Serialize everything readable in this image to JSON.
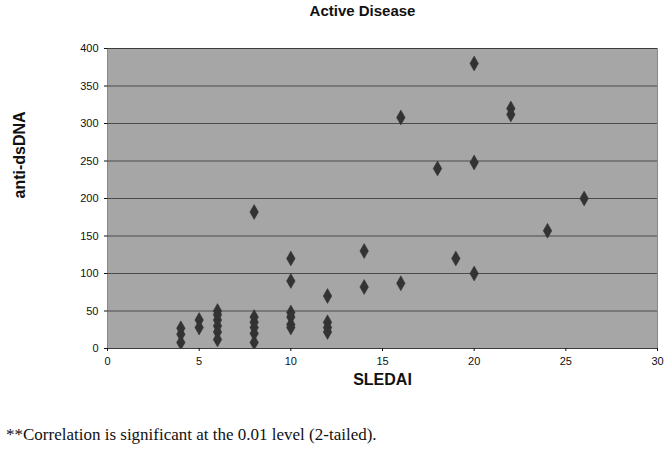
{
  "chart_data": {
    "type": "scatter",
    "title": "Active Disease",
    "x_label": "SLEDAI",
    "y_label": "anti-dsDNA",
    "caption": "**Correlation is significant at the 0.01 level (2-tailed).",
    "x": [
      4,
      4,
      4,
      5,
      5,
      6,
      6,
      6,
      6,
      6,
      6,
      8,
      8,
      8,
      8,
      8,
      8,
      10,
      10,
      10,
      10,
      10,
      10,
      12,
      12,
      12,
      12,
      14,
      14,
      16,
      16,
      18,
      19,
      20,
      20,
      20,
      22,
      22,
      24,
      26
    ],
    "values": [
      27,
      19,
      8,
      38,
      28,
      50,
      45,
      38,
      30,
      22,
      12,
      182,
      42,
      35,
      28,
      20,
      8,
      120,
      90,
      48,
      42,
      32,
      28,
      70,
      35,
      28,
      22,
      130,
      82,
      308,
      87,
      240,
      120,
      380,
      248,
      100,
      320,
      312,
      157,
      200
    ],
    "color": "#333333",
    "marker": "diamond",
    "xlim": [
      0,
      30
    ],
    "xticks": [
      0,
      5,
      10,
      15,
      20,
      25,
      30
    ],
    "ylim": [
      0,
      400
    ],
    "yticks": [
      0,
      50,
      100,
      150,
      200,
      250,
      300,
      350,
      400
    ],
    "grid": true
  }
}
